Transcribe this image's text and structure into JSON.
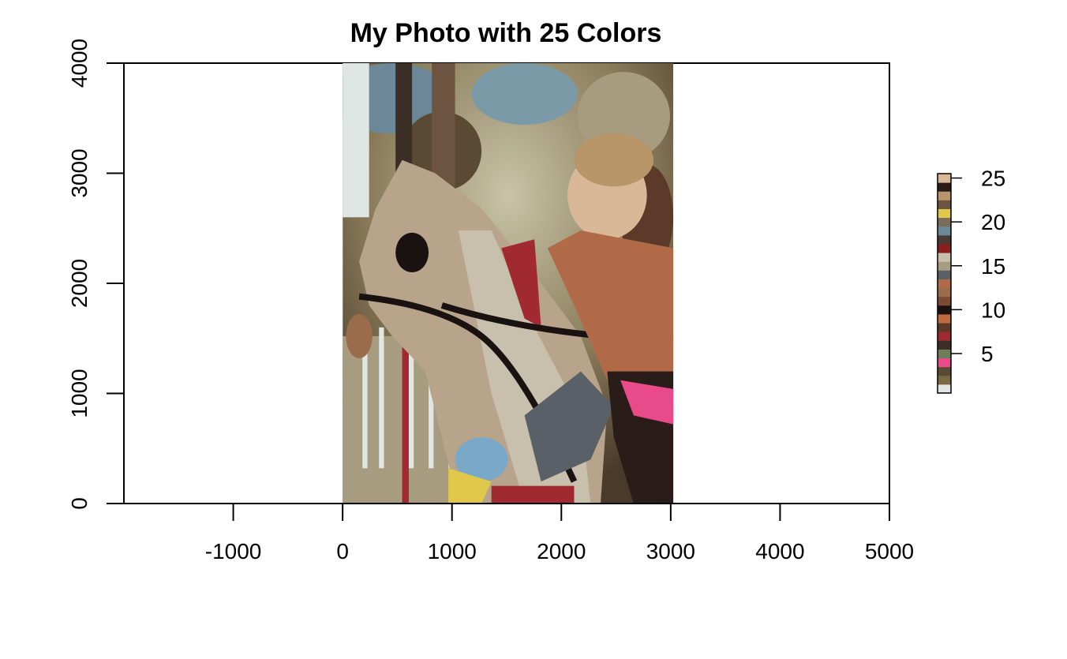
{
  "chart_data": {
    "type": "heatmap",
    "title": "My Photo with  25  Colors",
    "xlabel": "",
    "ylabel": "",
    "xlim": [
      -2000,
      5000
    ],
    "ylim": [
      0,
      4000
    ],
    "x_ticks": [
      "-1000",
      "0",
      "1000",
      "2000",
      "3000",
      "4000",
      "5000"
    ],
    "x_tick_values": [
      -1000,
      0,
      1000,
      2000,
      3000,
      4000,
      5000
    ],
    "y_ticks": [
      "0",
      "1000",
      "2000",
      "3000",
      "4000"
    ],
    "y_tick_values": [
      0,
      1000,
      2000,
      3000,
      4000
    ],
    "image_extent": {
      "x": [
        0,
        3024
      ],
      "y": [
        0,
        4032
      ]
    },
    "image_subject": "child riding a carousel horse",
    "legend": {
      "position": "right",
      "range": [
        1,
        25
      ],
      "ticks": [
        "5",
        "10",
        "15",
        "20",
        "25"
      ],
      "tick_values": [
        5,
        10,
        15,
        20,
        25
      ],
      "colors": [
        "#dfe6e4",
        "#7a6a44",
        "#5a4a34",
        "#e84a8a",
        "#6c7e58",
        "#3b2e27",
        "#a02a30",
        "#5c3a2a",
        "#c06a3e",
        "#1a1210",
        "#7c4a34",
        "#9a6c4c",
        "#b06a48",
        "#5a6068",
        "#a89c80",
        "#c8c0ac",
        "#8a1e1e",
        "#4a3a32",
        "#6c8898",
        "#7c6c5c",
        "#e0c84a",
        "#6c5440",
        "#b8966a",
        "#2a1c18",
        "#d8b896"
      ]
    }
  }
}
